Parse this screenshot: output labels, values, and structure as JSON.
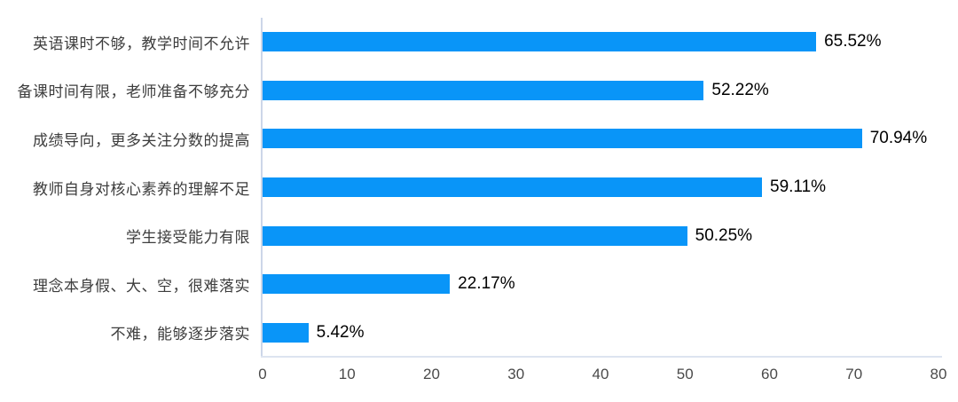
{
  "chart_data": {
    "type": "bar",
    "orientation": "horizontal",
    "title": "",
    "xlabel": "",
    "ylabel": "",
    "categories": [
      "英语课时不够，教学时间不允许",
      "备课时间有限，老师准备不够充分",
      "成绩导向，更多关注分数的提高",
      "教师自身对核心素养的理解不足",
      "学生接受能力有限",
      "理念本身假、大、空，很难落实",
      "不难，能够逐步落实"
    ],
    "values": [
      65.52,
      52.22,
      70.94,
      59.11,
      50.25,
      22.17,
      5.42
    ],
    "value_labels": [
      "65.52%",
      "52.22%",
      "70.94%",
      "59.11%",
      "50.25%",
      "22.17%",
      "5.42%"
    ],
    "xlim": [
      0,
      80
    ],
    "x_ticks": [
      "0",
      "10",
      "20",
      "30",
      "40",
      "50",
      "60",
      "70",
      "80"
    ],
    "grid": false,
    "legend": "none",
    "bar_color": "#0995f8"
  },
  "colors": {
    "background": "#ffffff",
    "bar": "#0995f8",
    "axis_line": "#ccd6e8",
    "baseline": "#dde4f0",
    "category_text": "#3d3d3d",
    "value_text": "#000000",
    "tick_text": "#4a4a4a"
  }
}
